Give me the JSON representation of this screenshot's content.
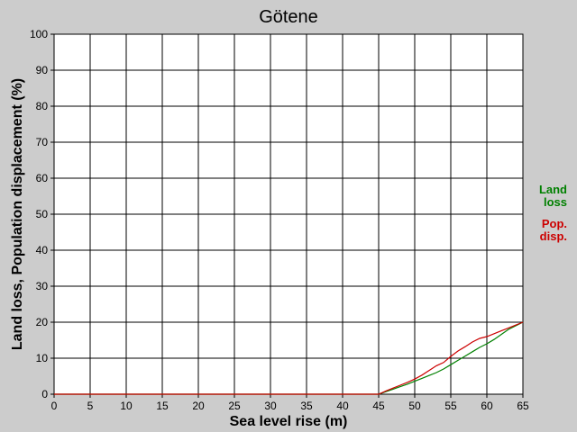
{
  "chart_data": {
    "type": "line",
    "title": "Götene",
    "xlabel": "Sea level rise (m)",
    "ylabel": "Land loss, Population displacement (%)",
    "xlim": [
      0,
      65
    ],
    "ylim": [
      0,
      100
    ],
    "x_ticks": [
      "0",
      "5",
      "10",
      "15",
      "20",
      "25",
      "30",
      "35",
      "40",
      "45",
      "50",
      "55",
      "60",
      "65"
    ],
    "y_ticks": [
      "0",
      "10",
      "20",
      "30",
      "40",
      "50",
      "60",
      "70",
      "80",
      "90",
      "100"
    ],
    "grid": true,
    "legend_position": "right",
    "series": [
      {
        "name": "Land loss",
        "legend_lines": [
          "Land",
          "loss"
        ],
        "color": "#008000",
        "x": [
          0,
          45,
          46,
          47,
          48,
          49,
          50,
          51,
          52,
          53,
          54,
          55,
          56,
          57,
          58,
          59,
          60,
          61,
          62,
          63,
          64,
          65
        ],
        "y": [
          0,
          0,
          0.7,
          1.4,
          2.1,
          2.8,
          3.6,
          4.4,
          5.2,
          6.0,
          7.0,
          8.2,
          9.4,
          10.6,
          11.8,
          13.0,
          14.0,
          15.2,
          16.6,
          18.0,
          19.0,
          20.0
        ]
      },
      {
        "name": "Pop. disp.",
        "legend_lines": [
          "Pop.",
          "disp."
        ],
        "color": "#cc0000",
        "x": [
          0,
          45,
          46,
          47,
          48,
          49,
          50,
          51,
          52,
          53,
          54,
          55,
          56,
          57,
          58,
          59,
          60,
          61,
          62,
          63,
          64,
          65
        ],
        "y": [
          0,
          0,
          0.9,
          1.7,
          2.5,
          3.3,
          4.2,
          5.3,
          6.6,
          7.9,
          8.8,
          10.5,
          12.0,
          13.2,
          14.5,
          15.5,
          16.0,
          16.8,
          17.6,
          18.4,
          19.2,
          20.0
        ]
      }
    ]
  }
}
